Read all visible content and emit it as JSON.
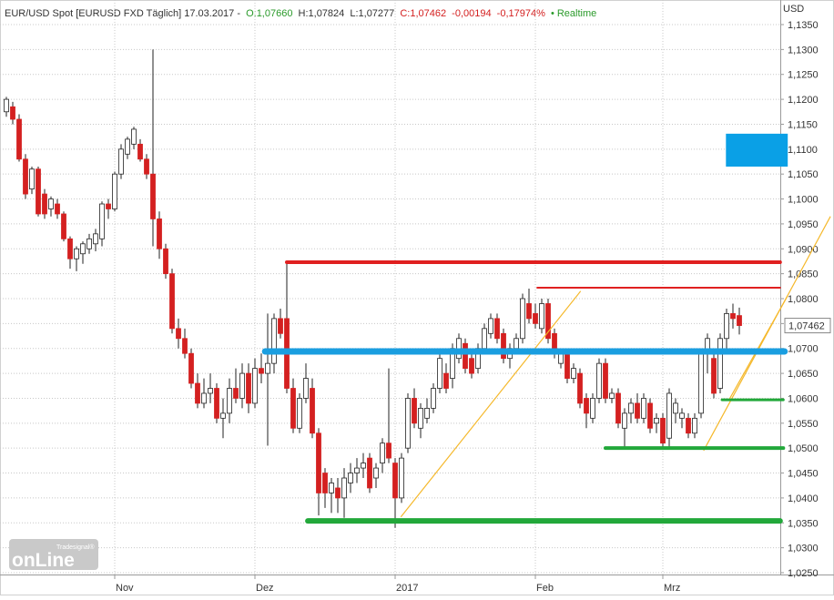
{
  "chart_data": {
    "type": "candlestick",
    "header": {
      "symbol": "EUR/USD Spot [EURUSD FXD Täglich] 17.03.2017 -",
      "open": "O:1,07660",
      "high": "H:1,07824",
      "low": "L:1,07277",
      "close": "C:1,07462",
      "change": "-0,00194",
      "change_pct": "-0,17974%",
      "realtime": "• Realtime"
    },
    "y_label": "USD",
    "last_price_label": "1,07462",
    "logo": {
      "brand": "Tradesignal®",
      "text": "onLine"
    },
    "up_color": "#ffffff",
    "down_color": "#d42020",
    "grid": true,
    "categories": [
      null,
      null,
      null,
      null,
      null,
      null,
      null,
      null,
      null,
      null,
      null,
      null,
      null,
      null,
      null,
      null,
      null,
      "Nov",
      null,
      null,
      null,
      null,
      null,
      null,
      null,
      null,
      null,
      null,
      null,
      null,
      null,
      null,
      null,
      null,
      null,
      null,
      null,
      null,
      null,
      "Dez",
      null,
      null,
      null,
      null,
      null,
      null,
      null,
      null,
      null,
      null,
      null,
      null,
      null,
      null,
      null,
      null,
      null,
      null,
      null,
      null,
      null,
      "2017",
      null,
      null,
      null,
      null,
      null,
      null,
      null,
      null,
      null,
      null,
      null,
      null,
      null,
      null,
      null,
      null,
      null,
      null,
      null,
      null,
      null,
      "Feb",
      null,
      null,
      null,
      null,
      null,
      null,
      null,
      null,
      null,
      null,
      null,
      null,
      null,
      null,
      null,
      null,
      null,
      null,
      null,
      "Mrz",
      null,
      null,
      null,
      null,
      null,
      null,
      null,
      null,
      null,
      null,
      null,
      null
    ],
    "open": [
      1.1175,
      1.1185,
      1.116,
      1.108,
      1.102,
      1.106,
      1.101,
      1.098,
      1.099,
      1.097,
      1.092,
      1.088,
      1.089,
      1.09,
      1.091,
      1.092,
      1.099,
      1.098,
      1.105,
      1.109,
      1.111,
      1.111,
      1.108,
      1.105,
      1.096,
      1.09,
      1.085,
      1.074,
      1.072,
      1.069,
      1.063,
      1.059,
      1.061,
      1.062,
      1.056,
      1.057,
      1.062,
      1.06,
      1.065,
      1.059,
      1.066,
      1.065,
      1.067,
      1.076,
      1.076,
      1.062,
      1.054,
      1.06,
      1.062,
      1.053,
      1.045,
      1.041,
      1.042,
      1.04,
      1.043,
      1.045,
      1.046,
      1.048,
      1.044,
      1.047,
      1.051,
      1.047,
      1.04,
      1.05,
      1.06,
      1.054,
      1.056,
      1.058,
      1.062,
      1.065,
      1.064,
      1.068,
      1.071,
      1.068,
      1.066,
      1.07,
      1.073,
      1.076,
      1.073,
      1.068,
      1.07,
      1.072,
      1.079,
      1.077,
      1.074,
      1.079,
      1.073,
      1.067,
      1.069,
      1.064,
      1.065,
      1.06,
      1.056,
      1.06,
      1.067,
      1.06,
      1.061,
      1.054,
      1.057,
      1.059,
      1.056,
      1.059,
      1.055,
      1.056,
      1.052,
      1.057,
      1.056,
      1.056,
      1.053,
      1.057,
      1.069,
      1.068,
      1.062,
      1.072,
      1.077,
      1.0766
    ],
    "high": [
      1.1205,
      1.1195,
      1.117,
      1.109,
      1.1065,
      1.1065,
      1.102,
      1.1005,
      1.1,
      1.0975,
      1.0925,
      1.0905,
      1.0915,
      1.093,
      1.094,
      1.0995,
      1.1,
      1.1055,
      1.111,
      1.1125,
      1.1145,
      1.112,
      1.109,
      1.13,
      1.0975,
      1.091,
      1.086,
      1.076,
      1.074,
      1.07,
      1.065,
      1.064,
      1.065,
      1.063,
      1.06,
      1.064,
      1.066,
      1.067,
      1.067,
      1.068,
      1.069,
      1.077,
      1.077,
      1.078,
      1.0875,
      1.064,
      1.061,
      1.067,
      1.064,
      1.054,
      1.046,
      1.044,
      1.044,
      1.046,
      1.047,
      1.048,
      1.049,
      1.049,
      1.047,
      1.052,
      1.066,
      1.048,
      1.049,
      1.061,
      1.062,
      1.059,
      1.06,
      1.063,
      1.069,
      1.067,
      1.071,
      1.073,
      1.072,
      1.069,
      1.071,
      1.075,
      1.077,
      1.077,
      1.074,
      1.071,
      1.073,
      1.081,
      1.082,
      1.079,
      1.08,
      1.08,
      1.074,
      1.07,
      1.07,
      1.067,
      1.066,
      1.061,
      1.061,
      1.068,
      1.068,
      1.062,
      1.062,
      1.058,
      1.06,
      1.061,
      1.061,
      1.06,
      1.057,
      1.057,
      1.062,
      1.06,
      1.058,
      1.057,
      1.057,
      1.07,
      1.073,
      1.069,
      1.073,
      1.078,
      1.079,
      1.0782
    ],
    "low": [
      1.1165,
      1.115,
      1.1075,
      1.1,
      1.101,
      1.0965,
      1.096,
      1.0965,
      1.096,
      1.0915,
      1.086,
      1.0855,
      1.087,
      1.089,
      1.0895,
      1.0905,
      1.096,
      1.0975,
      1.104,
      1.108,
      1.11,
      1.1075,
      1.104,
      1.0905,
      1.088,
      1.084,
      1.073,
      1.07,
      1.068,
      1.062,
      1.058,
      1.058,
      1.059,
      1.055,
      1.052,
      1.055,
      1.059,
      1.058,
      1.057,
      1.058,
      1.063,
      1.0505,
      1.065,
      1.072,
      1.061,
      1.053,
      1.053,
      1.059,
      1.052,
      1.0365,
      1.038,
      1.037,
      1.037,
      1.036,
      1.041,
      1.043,
      1.044,
      1.041,
      1.042,
      1.045,
      1.047,
      1.034,
      1.039,
      1.049,
      1.054,
      1.052,
      1.055,
      1.057,
      1.061,
      1.061,
      1.062,
      1.067,
      1.065,
      1.064,
      1.065,
      1.069,
      1.072,
      1.071,
      1.067,
      1.066,
      1.069,
      1.071,
      1.075,
      1.074,
      1.073,
      1.071,
      1.068,
      1.066,
      1.063,
      1.063,
      1.058,
      1.054,
      1.055,
      1.059,
      1.059,
      1.059,
      1.054,
      1.05,
      1.055,
      1.055,
      1.055,
      1.053,
      1.053,
      1.05,
      1.05,
      1.055,
      1.054,
      1.052,
      1.052,
      1.056,
      1.065,
      1.06,
      1.061,
      1.07,
      1.074,
      1.0728
    ],
    "close": [
      1.12,
      1.116,
      1.108,
      1.101,
      1.106,
      1.097,
      1.097,
      1.1,
      1.097,
      1.092,
      1.088,
      1.09,
      1.091,
      1.092,
      1.093,
      1.099,
      1.098,
      1.105,
      1.11,
      1.112,
      1.114,
      1.108,
      1.105,
      1.096,
      1.09,
      1.085,
      1.074,
      1.072,
      1.069,
      1.063,
      1.059,
      1.061,
      1.062,
      1.056,
      1.057,
      1.062,
      1.06,
      1.065,
      1.059,
      1.066,
      1.065,
      1.067,
      1.076,
      1.073,
      1.062,
      1.054,
      1.06,
      1.064,
      1.053,
      1.041,
      1.041,
      1.043,
      1.04,
      1.044,
      1.045,
      1.046,
      1.047,
      1.042,
      1.046,
      1.051,
      1.048,
      1.04,
      1.048,
      1.06,
      1.055,
      1.058,
      1.058,
      1.062,
      1.068,
      1.062,
      1.07,
      1.072,
      1.066,
      1.065,
      1.07,
      1.074,
      1.076,
      1.072,
      1.068,
      1.07,
      1.072,
      1.08,
      1.076,
      1.075,
      1.079,
      1.072,
      1.069,
      1.069,
      1.064,
      1.066,
      1.059,
      1.057,
      1.06,
      1.067,
      1.06,
      1.061,
      1.055,
      1.057,
      1.059,
      1.056,
      1.06,
      1.054,
      1.056,
      1.051,
      1.061,
      1.059,
      1.057,
      1.053,
      1.056,
      1.069,
      1.072,
      1.061,
      1.072,
      1.077,
      1.076,
      1.0746
    ],
    "ylim": [
      1.025,
      1.135
    ],
    "yticks": [
      {
        "value": 1.025,
        "label": "1,0250"
      },
      {
        "value": 1.03,
        "label": "1,0300"
      },
      {
        "value": 1.035,
        "label": "1,0350"
      },
      {
        "value": 1.04,
        "label": "1,0400"
      },
      {
        "value": 1.045,
        "label": "1,0450"
      },
      {
        "value": 1.05,
        "label": "1,0500"
      },
      {
        "value": 1.055,
        "label": "1,0550"
      },
      {
        "value": 1.06,
        "label": "1,0600"
      },
      {
        "value": 1.065,
        "label": "1,0650"
      },
      {
        "value": 1.07,
        "label": "1,0700"
      },
      {
        "value": 1.075,
        "label": "1,0750"
      },
      {
        "value": 1.08,
        "label": "1,0800"
      },
      {
        "value": 1.085,
        "label": "1,0850"
      },
      {
        "value": 1.09,
        "label": "1,0900"
      },
      {
        "value": 1.095,
        "label": "1,0950"
      },
      {
        "value": 1.1,
        "label": "1,1000"
      },
      {
        "value": 1.105,
        "label": "1,1050"
      },
      {
        "value": 1.11,
        "label": "1,1100"
      },
      {
        "value": 1.115,
        "label": "1,1150"
      },
      {
        "value": 1.12,
        "label": "1,1200"
      },
      {
        "value": 1.125,
        "label": "1,1250"
      },
      {
        "value": 1.13,
        "label": "1,1300"
      },
      {
        "value": 1.135,
        "label": "1,1350"
      }
    ],
    "levels": [
      {
        "value": 1.0873,
        "from": 44,
        "to": 121.4,
        "color": "#e02020"
      },
      {
        "value": 1.0822,
        "from": 83.3,
        "to": 121.4,
        "color": "#e02020"
      },
      {
        "value": 1.0694,
        "from": 40.6,
        "to": 122.1,
        "color": "#1a9ee0"
      },
      {
        "value": 1.0354,
        "from": 47.3,
        "to": 121.4,
        "color": "#22a83a"
      },
      {
        "value": 1.05,
        "from": 94,
        "to": 121.9,
        "color": "#22a83a"
      },
      {
        "value": 1.0597,
        "from": 112.3,
        "to": 121.9,
        "color": "#22a83a"
      }
    ],
    "trendlines": [
      {
        "x": [
          61.9,
          90.1
        ],
        "y": [
          1.0362,
          1.0815
        ],
        "color": "#f5b82a"
      },
      {
        "x": [
          109.4,
          129.3
        ],
        "y": [
          1.0495,
          1.0965
        ],
        "color": "#f5b82a"
      },
      {
        "x": [
          113.3,
          122.6
        ],
        "y": [
          1.0595,
          1.0806
        ],
        "color": "#f5b82a"
      }
    ],
    "zones": [
      {
        "x": [
          112.9,
          122.6
        ],
        "y": [
          1.1065,
          1.1131
        ],
        "color": "#0aa0e6"
      }
    ]
  }
}
